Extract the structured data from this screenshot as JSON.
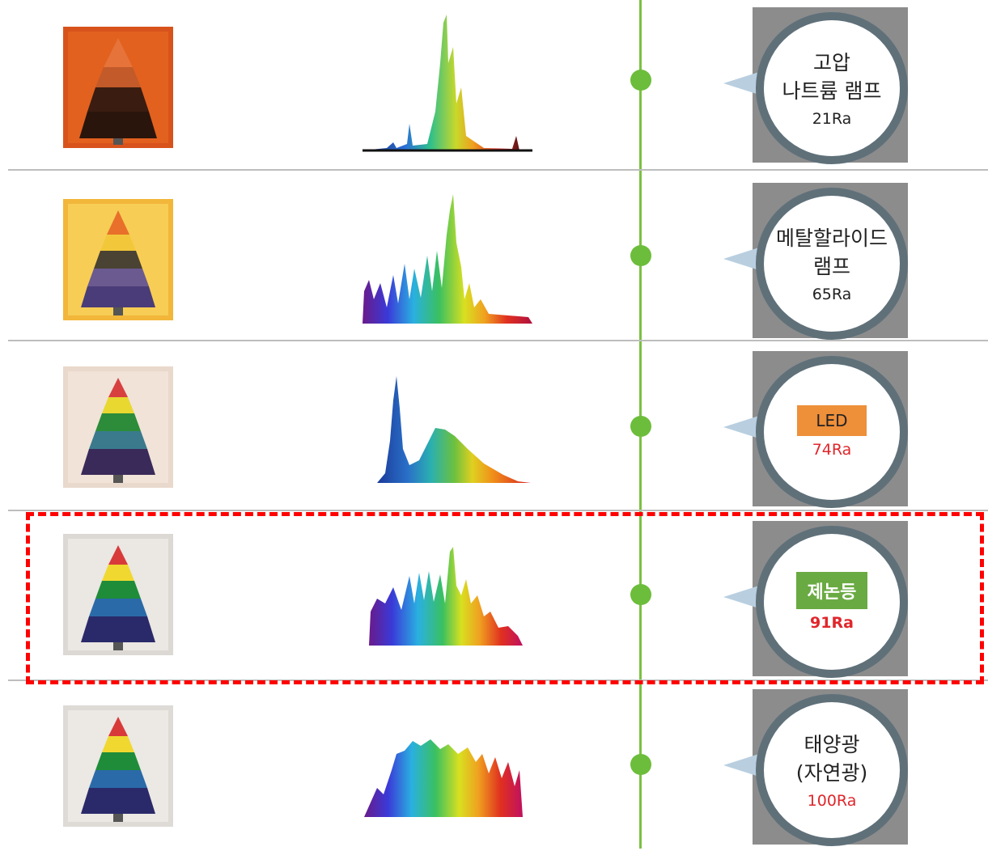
{
  "colors": {
    "timeline": "#7cc142",
    "highlight": "#ff0000",
    "ra_red": "#e0262b",
    "led_tag": "#ee8f3a",
    "xenon_tag": "#6aaa42"
  },
  "rows": [
    {
      "name_lines": [
        "고압",
        "나트륨 램프"
      ],
      "ra": "21Ra",
      "tag": null
    },
    {
      "name_lines": [
        "메탈할라이드",
        "램프"
      ],
      "ra": "65Ra",
      "tag": null
    },
    {
      "name_lines": [],
      "tag": "LED",
      "ra": "74Ra"
    },
    {
      "name_lines": [],
      "tag": "제논등",
      "ra": "91Ra",
      "highlighted": true
    },
    {
      "name_lines": [
        "태양광",
        "(자연광)"
      ],
      "ra": "100Ra",
      "tag": null
    }
  ]
}
